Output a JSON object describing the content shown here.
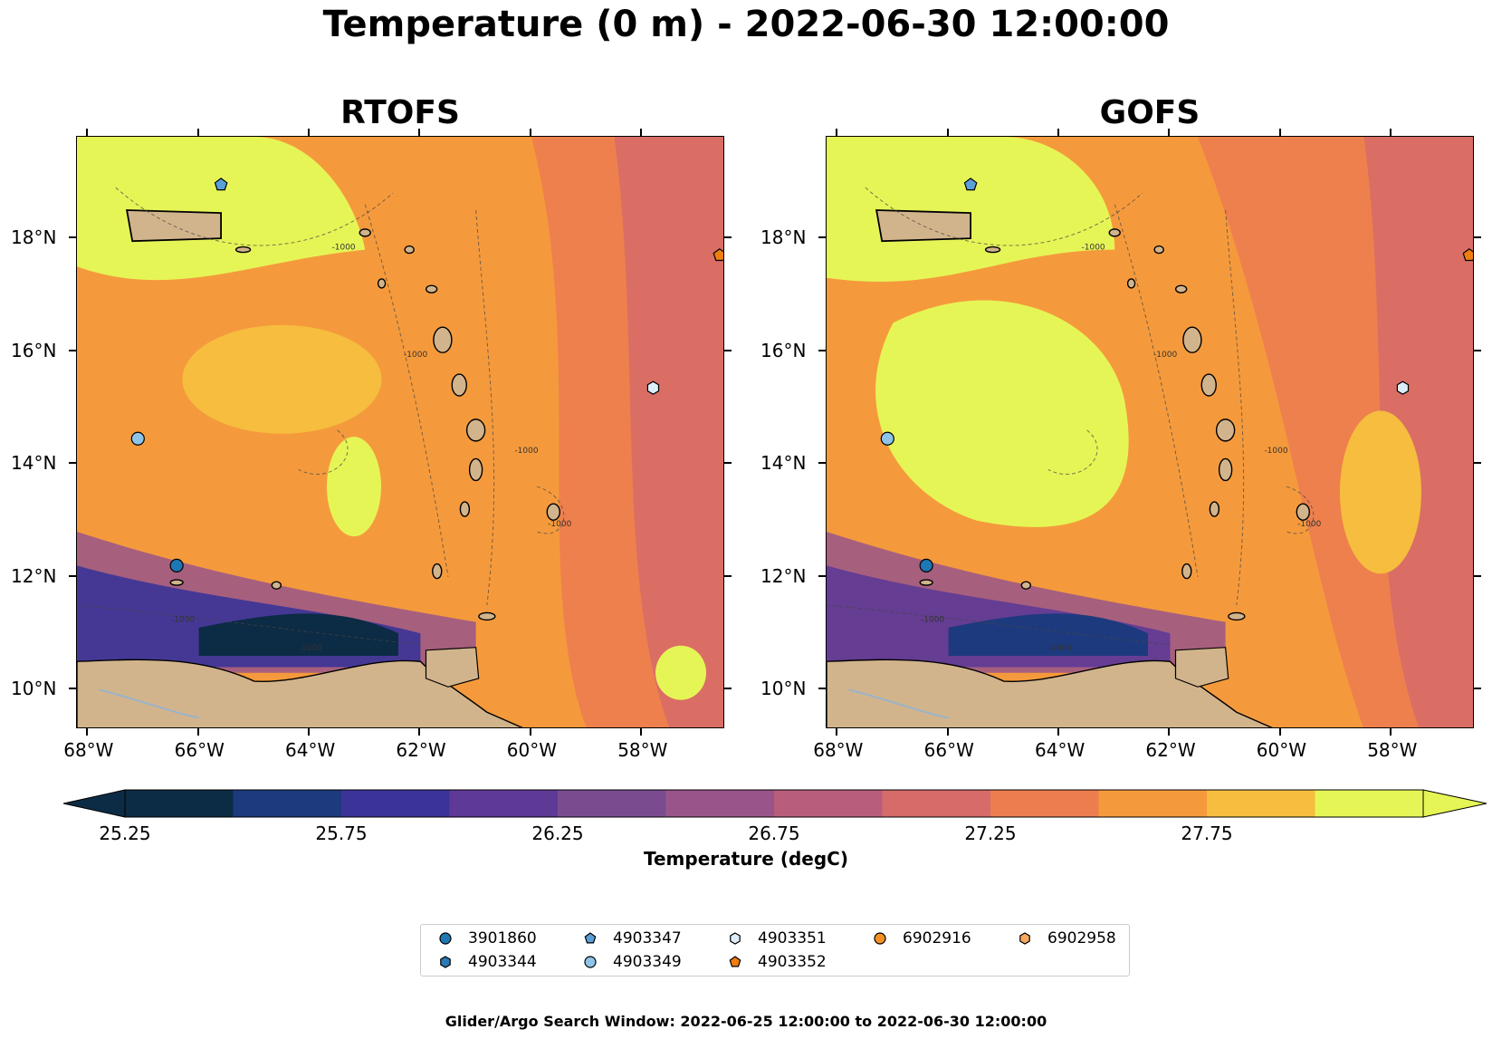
{
  "title": "Temperature (0 m) - 2022-06-30 12:00:00",
  "panels": [
    {
      "title": "RTOFS"
    },
    {
      "title": "GOFS"
    }
  ],
  "axes": {
    "x_ticks": [
      "68°W",
      "66°W",
      "64°W",
      "62°W",
      "60°W",
      "58°W"
    ],
    "y_ticks": [
      "18°N",
      "16°N",
      "14°N",
      "12°N",
      "10°N"
    ],
    "lon_range": [
      -68.2,
      -56.5
    ],
    "lat_range": [
      9.3,
      19.8
    ]
  },
  "colorbar": {
    "title": "Temperature (degC)",
    "tick_labels": [
      "25.25",
      "25.75",
      "26.25",
      "26.75",
      "27.25",
      "27.75"
    ],
    "levels": [
      25.25,
      25.5,
      25.75,
      26.0,
      26.25,
      26.5,
      26.75,
      27.0,
      27.25,
      27.5,
      27.75,
      28.0
    ],
    "colors": [
      "#0c2b45",
      "#1d3a7e",
      "#3b3498",
      "#5e3a96",
      "#7a4c8f",
      "#99558a",
      "#b85e7c",
      "#d66b6a",
      "#ed7d4f",
      "#f59a3c",
      "#f6bd3e",
      "#e6f556"
    ],
    "extend": "both"
  },
  "chart_data": {
    "type": "heatmap",
    "title": "Temperature (0 m) - 2022-06-30 12:00:00",
    "xlabel": "",
    "ylabel": "",
    "xlim": [
      -68.2,
      -56.5
    ],
    "ylim": [
      9.3,
      19.8
    ],
    "units": "degC",
    "stations": [
      {
        "id": "3901860",
        "marker": "circle",
        "color": "#1f77b4",
        "lon": -66.4,
        "lat": 12.2
      },
      {
        "id": "4903344",
        "marker": "hexagon",
        "color": "#2a7ab8",
        "lon": null,
        "lat": null
      },
      {
        "id": "4903347",
        "marker": "pentagon",
        "color": "#5aa0d8",
        "lon": -65.6,
        "lat": 18.95
      },
      {
        "id": "4903349",
        "marker": "circle",
        "color": "#8ec4ea",
        "lon": -67.1,
        "lat": 14.45
      },
      {
        "id": "4903351",
        "marker": "hexagon",
        "color": "#ddeefa",
        "lon": -57.8,
        "lat": 15.35
      },
      {
        "id": "4903352",
        "marker": "pentagon",
        "color": "#f07e10",
        "lon": -56.6,
        "lat": 17.7
      },
      {
        "id": "6902916",
        "marker": "circle",
        "color": "#f59022",
        "lon": null,
        "lat": null
      },
      {
        "id": "6902958",
        "marker": "hexagon",
        "color": "#f8a85e",
        "lon": null,
        "lat": null
      }
    ]
  },
  "legend": [
    {
      "id": "3901860",
      "marker": "circle",
      "color": "#1f77b4"
    },
    {
      "id": "4903347",
      "marker": "pentagon",
      "color": "#5aa0d8"
    },
    {
      "id": "4903351",
      "marker": "hexagon",
      "color": "#ddeefa"
    },
    {
      "id": "6902916",
      "marker": "circle",
      "color": "#f59022"
    },
    {
      "id": "6902958",
      "marker": "hexagon",
      "color": "#f8a85e"
    },
    {
      "id": "4903344",
      "marker": "hexagon",
      "color": "#2a7ab8"
    },
    {
      "id": "4903349",
      "marker": "circle",
      "color": "#8ec4ea"
    },
    {
      "id": "4903352",
      "marker": "pentagon",
      "color": "#f07e10"
    }
  ],
  "contour_label": "-1000",
  "footnote": "Glider/Argo Search Window: 2022-06-25 12:00:00 to 2022-06-30 12:00:00"
}
